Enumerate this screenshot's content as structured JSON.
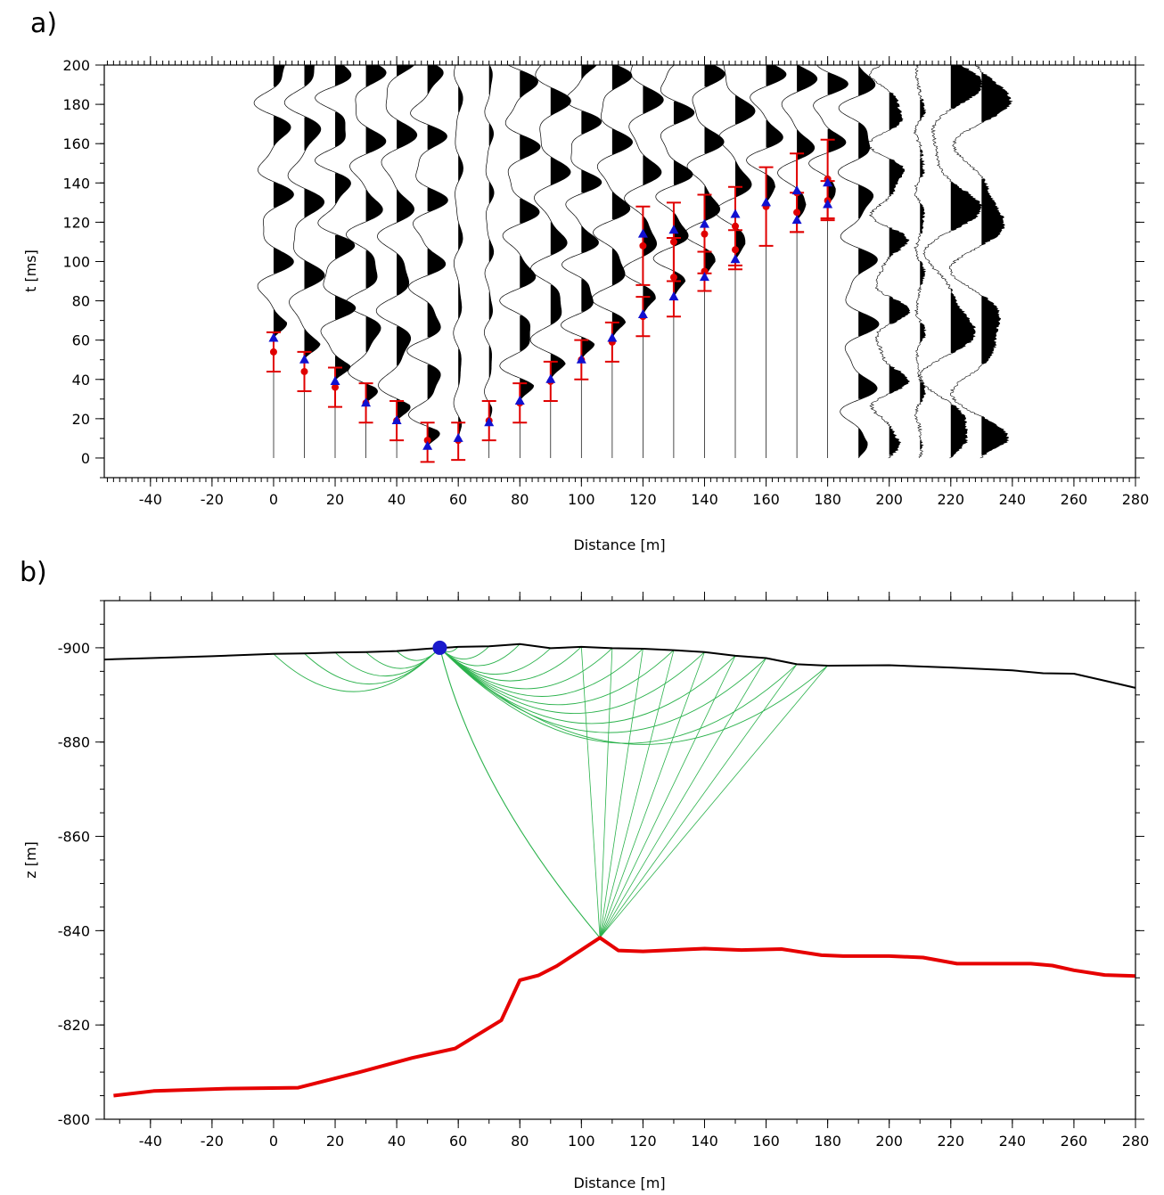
{
  "chart_data": [
    {
      "panel_label": "a)",
      "type": "scatter",
      "xlabel": "Distance [m]",
      "ylabel": "t [ms]",
      "xlim": [
        -55,
        280
      ],
      "ylim": [
        -10,
        200
      ],
      "xticks": [
        "-40",
        "-20",
        "0",
        "20",
        "40",
        "60",
        "80",
        "100",
        "120",
        "140",
        "160",
        "180",
        "200",
        "220",
        "240",
        "260",
        "280"
      ],
      "yticks": [
        "0",
        "20",
        "40",
        "60",
        "80",
        "100",
        "120",
        "140",
        "160",
        "180",
        "200"
      ],
      "trace_offsets": [
        0,
        10,
        20,
        30,
        40,
        50,
        60,
        70,
        80,
        90,
        100,
        110,
        120,
        130,
        140,
        150,
        160,
        170,
        180,
        190,
        200,
        210,
        220,
        230
      ],
      "series": [
        {
          "color": "#e00000",
          "marker": "circle",
          "points": [
            {
              "x": 0,
              "y": 54,
              "err_low": 44,
              "err_high": 64
            },
            {
              "x": 10,
              "y": 44,
              "err_low": 34,
              "err_high": 54
            },
            {
              "x": 20,
              "y": 36,
              "err_low": 26,
              "err_high": 46
            },
            {
              "x": 30,
              "y": 28,
              "err_low": 18,
              "err_high": 38
            },
            {
              "x": 40,
              "y": 19,
              "err_low": 9,
              "err_high": 29
            },
            {
              "x": 50,
              "y": 9,
              "err_low": -2,
              "err_high": 18
            },
            {
              "x": 60,
              "y": 9,
              "err_low": -1,
              "err_high": 18
            },
            {
              "x": 70,
              "y": 19,
              "err_low": 9,
              "err_high": 29
            },
            {
              "x": 80,
              "y": 28,
              "err_low": 18,
              "err_high": 38
            },
            {
              "x": 90,
              "y": 39,
              "err_low": 29,
              "err_high": 49
            },
            {
              "x": 100,
              "y": 50,
              "err_low": 40,
              "err_high": 60
            },
            {
              "x": 110,
              "y": 59,
              "err_low": 49,
              "err_high": 69
            },
            {
              "x": 120,
              "y": 108,
              "err_low": 88,
              "err_high": 128
            },
            {
              "x": 120,
              "y": 72,
              "err_low": 62,
              "err_high": 82
            },
            {
              "x": 130,
              "y": 110,
              "err_low": 90,
              "err_high": 130
            },
            {
              "x": 130,
              "y": 92,
              "err_low": 72,
              "err_high": 112
            },
            {
              "x": 140,
              "y": 114,
              "err_low": 94,
              "err_high": 134
            },
            {
              "x": 140,
              "y": 95,
              "err_low": 85,
              "err_high": 105
            },
            {
              "x": 150,
              "y": 118,
              "err_low": 98,
              "err_high": 138
            },
            {
              "x": 150,
              "y": 106,
              "err_low": 96,
              "err_high": 116
            },
            {
              "x": 160,
              "y": 128,
              "err_low": 108,
              "err_high": 148
            },
            {
              "x": 170,
              "y": 135,
              "err_low": 115,
              "err_high": 155
            },
            {
              "x": 170,
              "y": 125,
              "err_low": 115,
              "err_high": 135
            },
            {
              "x": 180,
              "y": 142,
              "err_low": 122,
              "err_high": 162
            },
            {
              "x": 180,
              "y": 131,
              "err_low": 121,
              "err_high": 141
            }
          ]
        },
        {
          "color": "#1010d0",
          "marker": "triangle",
          "points": [
            {
              "x": 0,
              "y": 61
            },
            {
              "x": 10,
              "y": 50
            },
            {
              "x": 20,
              "y": 39
            },
            {
              "x": 30,
              "y": 28
            },
            {
              "x": 40,
              "y": 19
            },
            {
              "x": 50,
              "y": 6
            },
            {
              "x": 60,
              "y": 10
            },
            {
              "x": 70,
              "y": 18
            },
            {
              "x": 80,
              "y": 29
            },
            {
              "x": 90,
              "y": 40
            },
            {
              "x": 100,
              "y": 50
            },
            {
              "x": 110,
              "y": 61
            },
            {
              "x": 120,
              "y": 114
            },
            {
              "x": 120,
              "y": 73
            },
            {
              "x": 130,
              "y": 116
            },
            {
              "x": 130,
              "y": 82
            },
            {
              "x": 140,
              "y": 119
            },
            {
              "x": 140,
              "y": 92
            },
            {
              "x": 150,
              "y": 124
            },
            {
              "x": 150,
              "y": 101
            },
            {
              "x": 160,
              "y": 130
            },
            {
              "x": 170,
              "y": 136
            },
            {
              "x": 170,
              "y": 121
            },
            {
              "x": 180,
              "y": 140
            },
            {
              "x": 180,
              "y": 129
            }
          ]
        }
      ]
    },
    {
      "panel_label": "b)",
      "type": "line",
      "xlabel": "Distance [m]",
      "ylabel": "z [m]",
      "xlim": [
        -55,
        280
      ],
      "ylim": [
        -800,
        -910
      ],
      "xticks": [
        "-40",
        "-20",
        "0",
        "20",
        "40",
        "60",
        "80",
        "100",
        "120",
        "140",
        "160",
        "180",
        "200",
        "220",
        "240",
        "260",
        "280"
      ],
      "yticks": [
        "-800",
        "-820",
        "-840",
        "-860",
        "-880",
        "-900"
      ],
      "source": {
        "x": 54,
        "z": -900,
        "color": "#1a1acc"
      },
      "ray_receivers_x": [
        0,
        10,
        20,
        30,
        40,
        50,
        60,
        70,
        80,
        90,
        100,
        110,
        120,
        130,
        140,
        150,
        160,
        170,
        180
      ],
      "surface": {
        "color": "#000000",
        "x": [
          -55,
          -40,
          -20,
          0,
          10,
          20,
          30,
          40,
          50,
          60,
          70,
          80,
          90,
          100,
          110,
          120,
          130,
          140,
          150,
          160,
          170,
          180,
          200,
          220,
          240,
          250,
          260,
          270,
          280
        ],
        "z": [
          -897.5,
          -897.8,
          -898.2,
          -898.7,
          -898.8,
          -899,
          -899.1,
          -899.3,
          -899.8,
          -900.2,
          -900.3,
          -900.8,
          -899.9,
          -900.2,
          -899.9,
          -899.8,
          -899.5,
          -899.1,
          -898.3,
          -897.8,
          -896.5,
          -896.2,
          -896.3,
          -895.8,
          -895.2,
          -894.6,
          -894.5,
          -893.0,
          -891.5
        ]
      },
      "refractor": {
        "color": "#e60000",
        "x": [
          -52,
          -39,
          -15,
          8,
          28,
          45,
          59,
          74,
          80,
          86,
          92,
          99,
          106,
          112,
          120,
          140,
          152,
          165,
          178,
          185,
          200,
          211,
          222,
          246,
          253,
          260,
          270,
          280
        ],
        "z": [
          -805,
          -806,
          -806.5,
          -806.7,
          -810,
          -813,
          -815,
          -821,
          -829.5,
          -830.5,
          -832.5,
          -835.5,
          -838.5,
          -835.8,
          -835.6,
          -836.2,
          -835.9,
          -836.1,
          -834.8,
          -834.6,
          -834.6,
          -834.3,
          -833,
          -833,
          -832.6,
          -831.6,
          -830.6,
          -830.4
        ]
      }
    }
  ]
}
